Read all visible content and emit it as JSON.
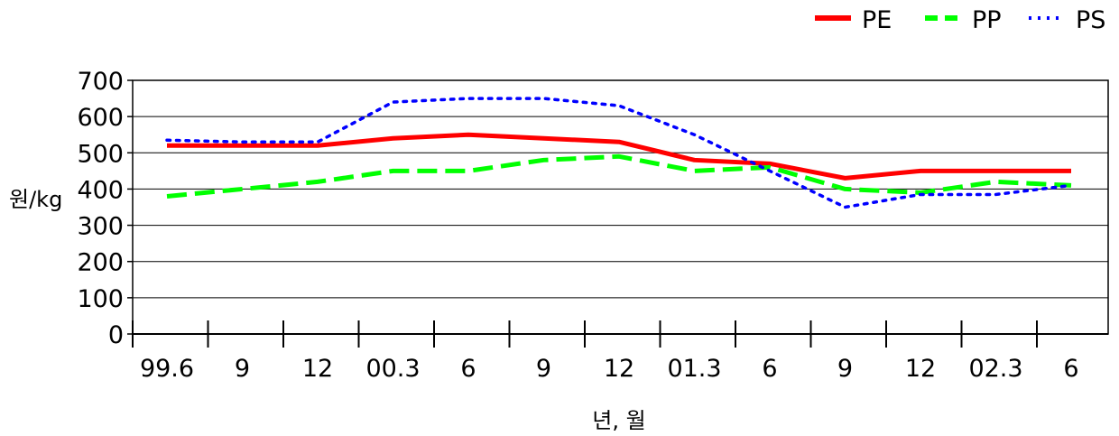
{
  "chart_data": {
    "type": "line",
    "title": "",
    "xlabel": "년, 월",
    "ylabel": "원/kg",
    "ylim": [
      0,
      700
    ],
    "yticks": [
      0,
      100,
      200,
      300,
      400,
      500,
      600,
      700
    ],
    "categories": [
      "99.6",
      "9",
      "12",
      "00.3",
      "6",
      "9",
      "12",
      "01.3",
      "6",
      "9",
      "12",
      "02.3",
      "6"
    ],
    "series": [
      {
        "name": "PE",
        "color": "#ff0000",
        "style": "solid",
        "values": [
          520,
          520,
          520,
          540,
          550,
          540,
          530,
          480,
          470,
          430,
          450,
          450,
          450
        ]
      },
      {
        "name": "PP",
        "color": "#00ff00",
        "style": "dashed",
        "values": [
          380,
          400,
          420,
          450,
          450,
          480,
          490,
          450,
          460,
          400,
          390,
          420,
          410
        ]
      },
      {
        "name": "PS",
        "color": "#0000ff",
        "style": "dotted",
        "values": [
          535,
          530,
          530,
          640,
          650,
          650,
          630,
          550,
          450,
          350,
          385,
          385,
          410
        ]
      }
    ],
    "grid": "horizontal",
    "legend": "top-right"
  }
}
